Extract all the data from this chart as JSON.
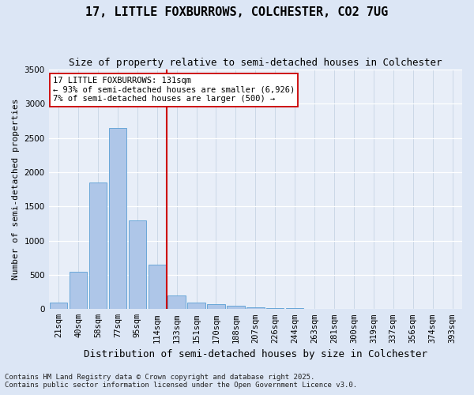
{
  "title1": "17, LITTLE FOXBURROWS, COLCHESTER, CO2 7UG",
  "title2": "Size of property relative to semi-detached houses in Colchester",
  "xlabel": "Distribution of semi-detached houses by size in Colchester",
  "ylabel": "Number of semi-detached properties",
  "footer1": "Contains HM Land Registry data © Crown copyright and database right 2025.",
  "footer2": "Contains public sector information licensed under the Open Government Licence v3.0.",
  "categories": [
    "21sqm",
    "40sqm",
    "58sqm",
    "77sqm",
    "95sqm",
    "114sqm",
    "133sqm",
    "151sqm",
    "170sqm",
    "188sqm",
    "207sqm",
    "226sqm",
    "244sqm",
    "263sqm",
    "281sqm",
    "300sqm",
    "319sqm",
    "337sqm",
    "356sqm",
    "374sqm",
    "393sqm"
  ],
  "bar_heights": [
    100,
    550,
    1850,
    2650,
    1300,
    650,
    200,
    100,
    75,
    55,
    30,
    15,
    10,
    5,
    2,
    1,
    0,
    0,
    0,
    0,
    0
  ],
  "bar_color": "#aec6e8",
  "bar_edge_color": "#5a9fd4",
  "vline_x_index": 5.5,
  "vline_color": "#cc0000",
  "annotation_title": "17 LITTLE FOXBURROWS: 131sqm",
  "annotation_line1": "← 93% of semi-detached houses are smaller (6,926)",
  "annotation_line2": "7% of semi-detached houses are larger (500) →",
  "annotation_box_color": "#ffffff",
  "annotation_box_edge": "#cc0000",
  "plot_bg_color": "#e8eef8",
  "fig_bg_color": "#dce6f5",
  "ylim": [
    0,
    3500
  ],
  "yticks": [
    0,
    500,
    1000,
    1500,
    2000,
    2500,
    3000,
    3500
  ],
  "title1_fontsize": 11,
  "title2_fontsize": 9,
  "ylabel_fontsize": 8,
  "xlabel_fontsize": 9,
  "tick_fontsize": 7.5,
  "footer_fontsize": 6.5
}
